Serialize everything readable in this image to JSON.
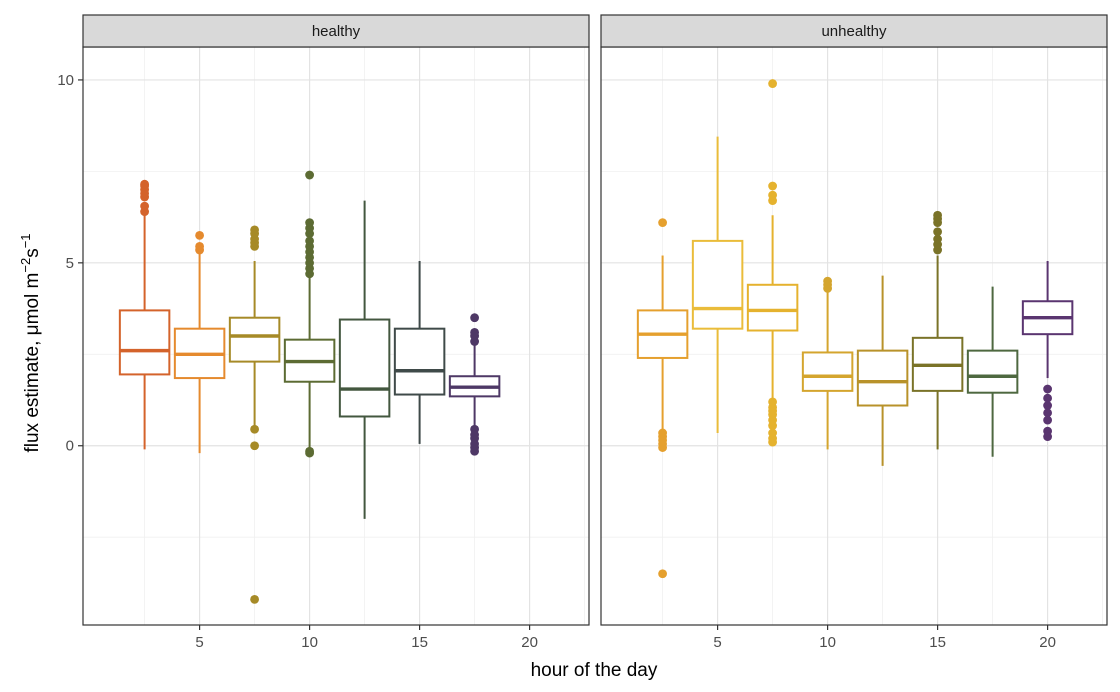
{
  "chart_data": {
    "type": "boxplot",
    "xlabel": "hour of the day",
    "ylabel": {
      "prefix": "flux estimate, ",
      "mu": "μ",
      "unit_main": "mol m",
      "sup1": "−2",
      "s": "s",
      "sup2": "−1"
    },
    "xlim": [
      -0.3,
      22.7
    ],
    "ylim": [
      -4.9,
      10.9
    ],
    "x_ticks": [
      5,
      10,
      15,
      20
    ],
    "x_tick_labels": [
      "5",
      "10",
      "15",
      "20"
    ],
    "y_ticks": [
      0,
      5,
      10
    ],
    "y_tick_labels": [
      "0",
      "5",
      "10"
    ],
    "grid": true,
    "panels": [
      {
        "label": "healthy",
        "boxes": [
          {
            "x": 2.5,
            "q1": 1.95,
            "median": 2.6,
            "q3": 3.7,
            "whisker_low": -0.1,
            "whisker_high": 6.3,
            "outliers": [
              6.4,
              6.55,
              6.8,
              6.9,
              7.0,
              7.1,
              7.15
            ],
            "color": "#d4632b"
          },
          {
            "x": 5.0,
            "q1": 1.85,
            "median": 2.5,
            "q3": 3.2,
            "whisker_low": -0.2,
            "whisker_high": 5.25,
            "outliers": [
              5.35,
              5.45,
              5.75
            ],
            "color": "#e58a2e"
          },
          {
            "x": 7.5,
            "q1": 2.3,
            "median": 3.0,
            "q3": 3.5,
            "whisker_low": 0.5,
            "whisker_high": 5.05,
            "outliers": [
              5.45,
              5.55,
              5.65,
              5.8,
              5.9,
              0.45,
              0.0,
              -4.2
            ],
            "color": "#a68a27"
          },
          {
            "x": 10.0,
            "q1": 1.75,
            "median": 2.3,
            "q3": 2.9,
            "whisker_low": -0.1,
            "whisker_high": 4.65,
            "outliers": [
              4.7,
              4.85,
              5.0,
              5.15,
              5.3,
              5.45,
              5.6,
              5.8,
              5.95,
              6.1,
              7.4,
              -0.15,
              -0.2
            ],
            "color": "#5c6b33"
          },
          {
            "x": 12.5,
            "q1": 0.8,
            "median": 1.55,
            "q3": 3.45,
            "whisker_low": -2.0,
            "whisker_high": 6.7,
            "outliers": [],
            "color": "#43573f"
          },
          {
            "x": 15.0,
            "q1": 1.4,
            "median": 2.05,
            "q3": 3.2,
            "whisker_low": 0.05,
            "whisker_high": 5.05,
            "outliers": [],
            "color": "#3f4a49"
          },
          {
            "x": 17.5,
            "q1": 1.35,
            "median": 1.6,
            "q3": 1.9,
            "whisker_low": 0.5,
            "whisker_high": 2.8,
            "outliers": [
              2.85,
              3.0,
              3.1,
              3.5,
              0.45,
              0.3,
              0.2,
              0.05,
              -0.05,
              -0.15
            ],
            "color": "#4e3866"
          }
        ]
      },
      {
        "label": "unhealthy",
        "boxes": [
          {
            "x": 2.5,
            "q1": 2.4,
            "median": 3.05,
            "q3": 3.7,
            "whisker_low": 0.4,
            "whisker_high": 5.2,
            "outliers": [
              6.1,
              0.35,
              0.25,
              0.15,
              0.05,
              -0.05,
              -3.5
            ],
            "color": "#e5a02e"
          },
          {
            "x": 5.0,
            "q1": 3.2,
            "median": 3.75,
            "q3": 5.6,
            "whisker_low": 0.35,
            "whisker_high": 8.45,
            "outliers": [],
            "color": "#eabc3a"
          },
          {
            "x": 7.5,
            "q1": 3.15,
            "median": 3.7,
            "q3": 4.4,
            "whisker_low": 1.3,
            "whisker_high": 6.3,
            "outliers": [
              6.7,
              6.85,
              7.1,
              9.9,
              1.2,
              1.05,
              0.95,
              0.85,
              0.7,
              0.55,
              0.35,
              0.2,
              0.1
            ],
            "color": "#e5b22e"
          },
          {
            "x": 10.0,
            "q1": 1.5,
            "median": 1.9,
            "q3": 2.55,
            "whisker_low": -0.1,
            "whisker_high": 4.25,
            "outliers": [
              4.3,
              4.4,
              4.5
            ],
            "color": "#d4a52e"
          },
          {
            "x": 12.5,
            "q1": 1.1,
            "median": 1.75,
            "q3": 2.6,
            "whisker_low": -0.55,
            "whisker_high": 4.65,
            "outliers": [],
            "color": "#b8922a"
          },
          {
            "x": 15.0,
            "q1": 1.5,
            "median": 2.2,
            "q3": 2.95,
            "whisker_low": -0.1,
            "whisker_high": 5.2,
            "outliers": [
              5.35,
              5.5,
              5.65,
              5.85,
              6.1,
              6.2,
              6.3
            ],
            "color": "#7a7328"
          },
          {
            "x": 17.5,
            "q1": 1.45,
            "median": 1.9,
            "q3": 2.6,
            "whisker_low": -0.3,
            "whisker_high": 4.35,
            "outliers": [],
            "color": "#4e6840"
          },
          {
            "x": 20.0,
            "q1": 3.05,
            "median": 3.5,
            "q3": 3.95,
            "whisker_low": 1.85,
            "whisker_high": 5.05,
            "outliers": [
              1.55,
              1.3,
              1.1,
              0.9,
              0.7,
              0.4,
              0.25
            ],
            "color": "#5a3570"
          }
        ]
      }
    ]
  }
}
